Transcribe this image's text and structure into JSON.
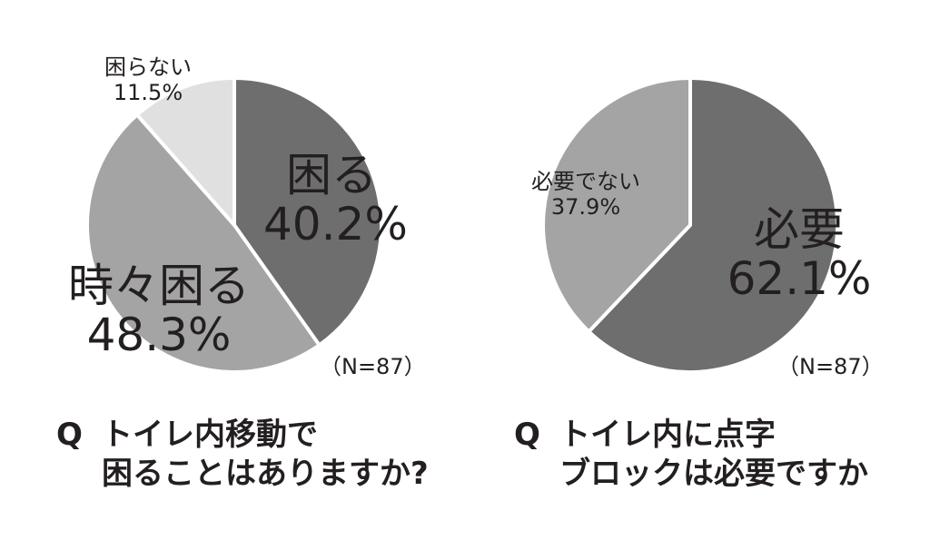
{
  "colors": {
    "dark": "#6e6e6e",
    "mid": "#a4a4a4",
    "light": "#e0e0e0",
    "stroke": "#ffffff",
    "text": "#231f20"
  },
  "chart_data": [
    {
      "type": "pie",
      "slices": [
        {
          "label": "困る",
          "value": 40.2,
          "value_label": "40.2%",
          "color": "#6e6e6e"
        },
        {
          "label": "時々困る",
          "value": 48.3,
          "value_label": "48.3%",
          "color": "#a4a4a4"
        },
        {
          "label": "困らない",
          "value": 11.5,
          "value_label": "11.5%",
          "color": "#e0e0e0"
        }
      ],
      "sample_note": "（N=87）",
      "question_mark": "Q",
      "question_lines": [
        "トイレ内移動で",
        "困ることはありますか?"
      ]
    },
    {
      "type": "pie",
      "slices": [
        {
          "label": "必要",
          "value": 62.1,
          "value_label": "62.1%",
          "color": "#6e6e6e"
        },
        {
          "label": "必要でない",
          "value": 37.9,
          "value_label": "37.9%",
          "color": "#a4a4a4"
        }
      ],
      "sample_note": "（N=87）",
      "question_mark": "Q",
      "question_lines": [
        "トイレ内に点字",
        "ブロックは必要ですか"
      ]
    }
  ]
}
